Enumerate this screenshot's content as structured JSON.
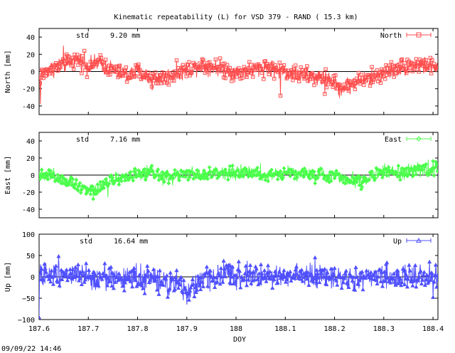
{
  "title": "Kinematic repeatability (L) for VSD 379 - RAND  ( 15.3 km)",
  "footer_timestamp": "09/09/22 14:46",
  "chart_data": [
    {
      "type": "line",
      "name": "North",
      "ylabel": "North [mm]",
      "std_label": "std",
      "std_value": "9.20 mm",
      "color": "#ff4d4d",
      "marker": "square",
      "xlim": [
        187.6,
        188.41
      ],
      "ylim": [
        -50,
        50
      ],
      "yticks": [
        -40,
        -20,
        0,
        20,
        40
      ],
      "ytick_labels": [
        "-40",
        "-20",
        "0",
        "20",
        "40"
      ],
      "noise_amp": 5,
      "trend": [
        [
          187.6,
          -6
        ],
        [
          187.62,
          2
        ],
        [
          187.65,
          8
        ],
        [
          187.68,
          14
        ],
        [
          187.7,
          6
        ],
        [
          187.72,
          10
        ],
        [
          187.75,
          2
        ],
        [
          187.78,
          -4
        ],
        [
          187.8,
          0
        ],
        [
          187.83,
          -8
        ],
        [
          187.86,
          -6
        ],
        [
          187.9,
          3
        ],
        [
          187.93,
          8
        ],
        [
          187.97,
          4
        ],
        [
          188.0,
          -2
        ],
        [
          188.03,
          2
        ],
        [
          188.06,
          5
        ],
        [
          188.1,
          0
        ],
        [
          188.13,
          -4
        ],
        [
          188.16,
          -7
        ],
        [
          188.19,
          -9
        ],
        [
          188.21,
          -20
        ],
        [
          188.23,
          -16
        ],
        [
          188.25,
          -10
        ],
        [
          188.28,
          -6
        ],
        [
          188.3,
          -2
        ],
        [
          188.33,
          4
        ],
        [
          188.36,
          8
        ],
        [
          188.39,
          6
        ],
        [
          188.41,
          4
        ]
      ],
      "spikes": [
        [
          187.603,
          -38
        ],
        [
          187.65,
          30
        ],
        [
          187.692,
          24
        ],
        [
          187.83,
          -22
        ],
        [
          188.09,
          -28
        ],
        [
          188.18,
          -26
        ]
      ]
    },
    {
      "type": "line",
      "name": "East",
      "ylabel": "East [mm]",
      "std_label": "std",
      "std_value": "7.16 mm",
      "color": "#4cff4c",
      "marker": "diamond",
      "xlim": [
        187.6,
        188.41
      ],
      "ylim": [
        -50,
        50
      ],
      "yticks": [
        -40,
        -20,
        0,
        20,
        40
      ],
      "ytick_labels": [
        "-40",
        "-20",
        "0",
        "20",
        "40"
      ],
      "noise_amp": 4,
      "trend": [
        [
          187.6,
          2
        ],
        [
          187.63,
          -2
        ],
        [
          187.66,
          -6
        ],
        [
          187.69,
          -14
        ],
        [
          187.71,
          -18
        ],
        [
          187.73,
          -10
        ],
        [
          187.75,
          -4
        ],
        [
          187.78,
          -2
        ],
        [
          187.8,
          0
        ],
        [
          187.83,
          2
        ],
        [
          187.86,
          -4
        ],
        [
          187.9,
          2
        ],
        [
          187.93,
          0
        ],
        [
          187.96,
          2
        ],
        [
          188.0,
          4
        ],
        [
          188.03,
          2
        ],
        [
          188.06,
          0
        ],
        [
          188.1,
          4
        ],
        [
          188.13,
          2
        ],
        [
          188.16,
          0
        ],
        [
          188.2,
          0
        ],
        [
          188.23,
          -4
        ],
        [
          188.26,
          -8
        ],
        [
          188.28,
          2
        ],
        [
          188.31,
          4
        ],
        [
          188.34,
          2
        ],
        [
          188.37,
          6
        ],
        [
          188.41,
          8
        ]
      ],
      "spikes": [
        [
          187.71,
          -28
        ],
        [
          187.74,
          -26
        ],
        [
          188.05,
          14
        ],
        [
          188.39,
          18
        ]
      ]
    },
    {
      "type": "line",
      "name": "Up",
      "ylabel": "Up [mm]",
      "std_label": "std",
      "std_value": "16.64 mm",
      "color": "#5050ff",
      "marker": "triangle",
      "xlim": [
        187.6,
        188.41
      ],
      "ylim": [
        -100,
        100
      ],
      "yticks": [
        -100,
        -50,
        0,
        50,
        100
      ],
      "ytick_labels": [
        "−100",
        "−50",
        "0",
        "50",
        "100"
      ],
      "xlabel": "DOY",
      "xticks": [
        187.6,
        187.7,
        187.8,
        187.9,
        188.0,
        188.1,
        188.2,
        188.3,
        188.4
      ],
      "xtick_labels": [
        "187.6",
        "187.7",
        "187.8",
        "187.9",
        "188",
        "188.1",
        "188.2",
        "188.3",
        "188.4"
      ],
      "noise_amp": 14,
      "trend": [
        [
          187.6,
          0
        ],
        [
          187.65,
          10
        ],
        [
          187.68,
          5
        ],
        [
          187.7,
          -5
        ],
        [
          187.73,
          0
        ],
        [
          187.76,
          -5
        ],
        [
          187.8,
          0
        ],
        [
          187.84,
          -10
        ],
        [
          187.88,
          -20
        ],
        [
          187.9,
          -35
        ],
        [
          187.92,
          -15
        ],
        [
          187.95,
          0
        ],
        [
          188.0,
          5
        ],
        [
          188.05,
          0
        ],
        [
          188.1,
          5
        ],
        [
          188.15,
          0
        ],
        [
          188.2,
          0
        ],
        [
          188.25,
          -5
        ],
        [
          188.3,
          0
        ],
        [
          188.35,
          0
        ],
        [
          188.41,
          0
        ]
      ],
      "spikes": [
        [
          187.6,
          -95
        ],
        [
          187.64,
          48
        ],
        [
          187.9,
          -65
        ],
        [
          188.16,
          45
        ],
        [
          188.4,
          -48
        ]
      ]
    }
  ]
}
